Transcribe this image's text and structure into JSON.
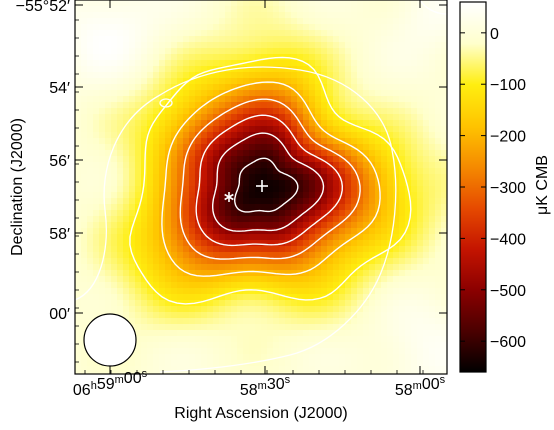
{
  "chart_data": {
    "type": "heatmap",
    "title": "",
    "xlabel": "Right Ascension (J2000)",
    "ylabel": "Declination (J2000)",
    "colorbar_label": "μK CMB",
    "colorbar_range": [
      -660,
      60
    ],
    "colorbar_ticks": [
      0,
      -100,
      -200,
      -300,
      -400,
      -500,
      -600
    ],
    "colormap": [
      "#000000",
      "#4a0000",
      "#8b0000",
      "#c41400",
      "#e64a00",
      "#f58a00",
      "#ffc400",
      "#ffee10",
      "#ffffcc",
      "#ffffff"
    ],
    "contour_color": "#ffffff",
    "x_ticks": [
      {
        "label_main": "06",
        "label_h": "h",
        "label_m_main": "59",
        "label_m": "m",
        "label_s_main": "00",
        "label_s": "s"
      },
      {
        "label_main": "58",
        "label_m": "m",
        "label_s_main": "30",
        "label_s": "s"
      },
      {
        "label_main": "58",
        "label_m": "m",
        "label_s_main": "00",
        "label_s": "s"
      }
    ],
    "y_ticks": [
      "−55°52′",
      "54′",
      "56′",
      "58′",
      "00′"
    ],
    "cluster_peak": {
      "value": -660,
      "marker": "+",
      "label": "plus-marker"
    },
    "secondary_marker": {
      "marker": "*",
      "label": "asterisk-marker"
    },
    "contour_levels": [
      -100,
      -200,
      -300,
      -400,
      -500,
      -600
    ],
    "beam": {
      "shape": "circle",
      "fill": "#ffffff"
    }
  }
}
